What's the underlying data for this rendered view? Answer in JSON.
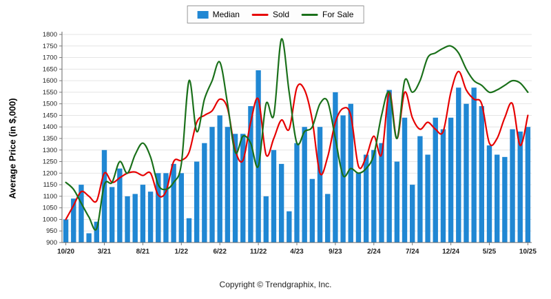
{
  "legend": {
    "items": [
      {
        "label": "Median",
        "type": "bar",
        "color": "#2087d3"
      },
      {
        "label": "Sold",
        "type": "line",
        "color": "#e60000"
      },
      {
        "label": "For Sale",
        "type": "line",
        "color": "#1a701a"
      }
    ]
  },
  "ylabel": "Average Price (in $,000)",
  "footer": {
    "copyright": "Copyright © Trendgraphix, Inc."
  },
  "chart_data": {
    "type": "bar+line",
    "title": "",
    "ylabel": "Average Price (in $,000)",
    "ylim": [
      900,
      1800
    ],
    "ytick_step": 50,
    "grid": true,
    "legend_position": "top-center",
    "n_points": 61,
    "x_tick_every": 5,
    "x_tick_labels": [
      "10/20",
      "3/21",
      "8/21",
      "1/22",
      "6/22",
      "11/22",
      "4/23",
      "9/23",
      "2/24",
      "7/24",
      "12/24",
      "5/25",
      "10/25"
    ],
    "series": [
      {
        "name": "Median",
        "type": "bar",
        "color": "#2087d3",
        "values": [
          1000,
          1090,
          1150,
          940,
          990,
          1300,
          1140,
          1220,
          1100,
          1110,
          1150,
          1120,
          1200,
          1200,
          1240,
          1200,
          1005,
          1250,
          1330,
          1400,
          1450,
          1400,
          1370,
          1370,
          1490,
          1645,
          1100,
          1300,
          1240,
          1035,
          1330,
          1400,
          1175,
          1400,
          1110,
          1550,
          1450,
          1500,
          1200,
          1280,
          1300,
          1330,
          1560,
          1250,
          1440,
          1150,
          1360,
          1280,
          1440,
          1390,
          1440,
          1570,
          1500,
          1570,
          1490,
          1320,
          1280,
          1270,
          1390,
          1380,
          1400
        ]
      },
      {
        "name": "Sold",
        "type": "line",
        "color": "#e60000",
        "values": [
          1000,
          1060,
          1120,
          1100,
          1080,
          1200,
          1160,
          1180,
          1200,
          1205,
          1190,
          1200,
          1105,
          1120,
          1250,
          1255,
          1290,
          1420,
          1450,
          1470,
          1520,
          1480,
          1300,
          1255,
          1420,
          1520,
          1280,
          1350,
          1430,
          1390,
          1570,
          1560,
          1430,
          1200,
          1270,
          1420,
          1480,
          1450,
          1230,
          1270,
          1360,
          1280,
          1550,
          1350,
          1550,
          1440,
          1390,
          1420,
          1390,
          1380,
          1550,
          1640,
          1560,
          1520,
          1500,
          1330,
          1350,
          1440,
          1500,
          1320,
          1450
        ]
      },
      {
        "name": "For Sale",
        "type": "line",
        "color": "#1a701a",
        "values": [
          1160,
          1130,
          1070,
          1010,
          960,
          1150,
          1160,
          1250,
          1200,
          1280,
          1330,
          1270,
          1150,
          1130,
          1160,
          1240,
          1600,
          1380,
          1520,
          1600,
          1680,
          1500,
          1290,
          1360,
          1330,
          1230,
          1500,
          1450,
          1780,
          1550,
          1330,
          1380,
          1400,
          1500,
          1510,
          1350,
          1190,
          1220,
          1200,
          1220,
          1280,
          1450,
          1550,
          1350,
          1600,
          1550,
          1600,
          1700,
          1720,
          1740,
          1750,
          1720,
          1650,
          1600,
          1580,
          1550,
          1560,
          1580,
          1600,
          1590,
          1550
        ]
      }
    ]
  }
}
